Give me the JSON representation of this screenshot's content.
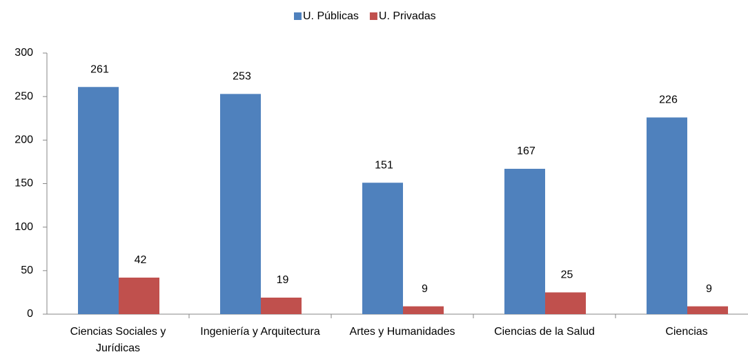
{
  "chart_data": {
    "type": "bar",
    "categories": [
      "Ciencias Sociales y Jurídicas",
      "Ingeniería y Arquitectura",
      "Artes y Humanidades",
      "Ciencias de la Salud",
      "Ciencias"
    ],
    "series": [
      {
        "name": "U. Públicas",
        "color": "#4f81bd",
        "values": [
          261,
          253,
          151,
          167,
          226
        ]
      },
      {
        "name": "U. Privadas",
        "color": "#c0504d",
        "values": [
          42,
          19,
          9,
          25,
          9
        ]
      }
    ],
    "ylim": [
      0,
      300
    ],
    "yticks": [
      0,
      50,
      100,
      150,
      200,
      250,
      300
    ],
    "grid": false,
    "legend": "top"
  }
}
